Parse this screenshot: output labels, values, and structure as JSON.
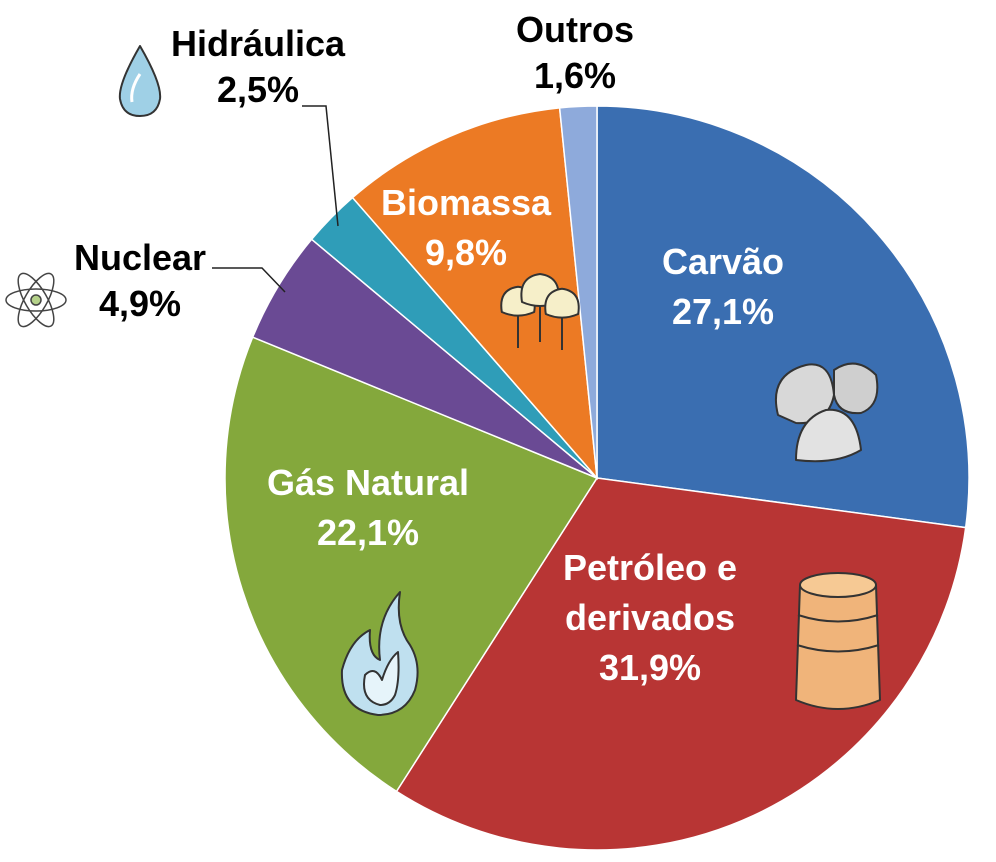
{
  "chart_data": {
    "type": "pie",
    "title": "",
    "slices": [
      {
        "label_lines": [
          "Carvão"
        ],
        "value": 27.1,
        "value_label": "27,1%",
        "color": "#3A6EB1",
        "text_color": "#ffffff",
        "icon": "coal-icon"
      },
      {
        "label_lines": [
          "Petróleo e",
          "derivados"
        ],
        "value": 31.9,
        "value_label": "31,9%",
        "color": "#B83534",
        "text_color": "#ffffff",
        "icon": "oil-barrel-icon"
      },
      {
        "label_lines": [
          "Gás Natural"
        ],
        "value": 22.1,
        "value_label": "22,1%",
        "color": "#84A83C",
        "text_color": "#ffffff",
        "icon": "flame-icon"
      },
      {
        "label_lines": [
          "Nuclear"
        ],
        "value": 4.9,
        "value_label": "4,9%",
        "color": "#6A4A94",
        "text_color": "#000000",
        "icon": "atom-icon"
      },
      {
        "label_lines": [
          "Hidráulica"
        ],
        "value": 2.5,
        "value_label": "2,5%",
        "color": "#2F9DB8",
        "text_color": "#000000",
        "icon": "water-drop-icon"
      },
      {
        "label_lines": [
          "Biomassa"
        ],
        "value": 9.8,
        "value_label": "9,8%",
        "color": "#EC7A24",
        "text_color": "#ffffff",
        "icon": "trees-icon"
      },
      {
        "label_lines": [
          "Outros"
        ],
        "value": 1.6,
        "value_label": "1,6%",
        "color": "#8EAADB",
        "text_color": "#000000",
        "icon": ""
      }
    ],
    "start_angle_deg": 0,
    "direction": "clockwise",
    "legend": "none"
  }
}
